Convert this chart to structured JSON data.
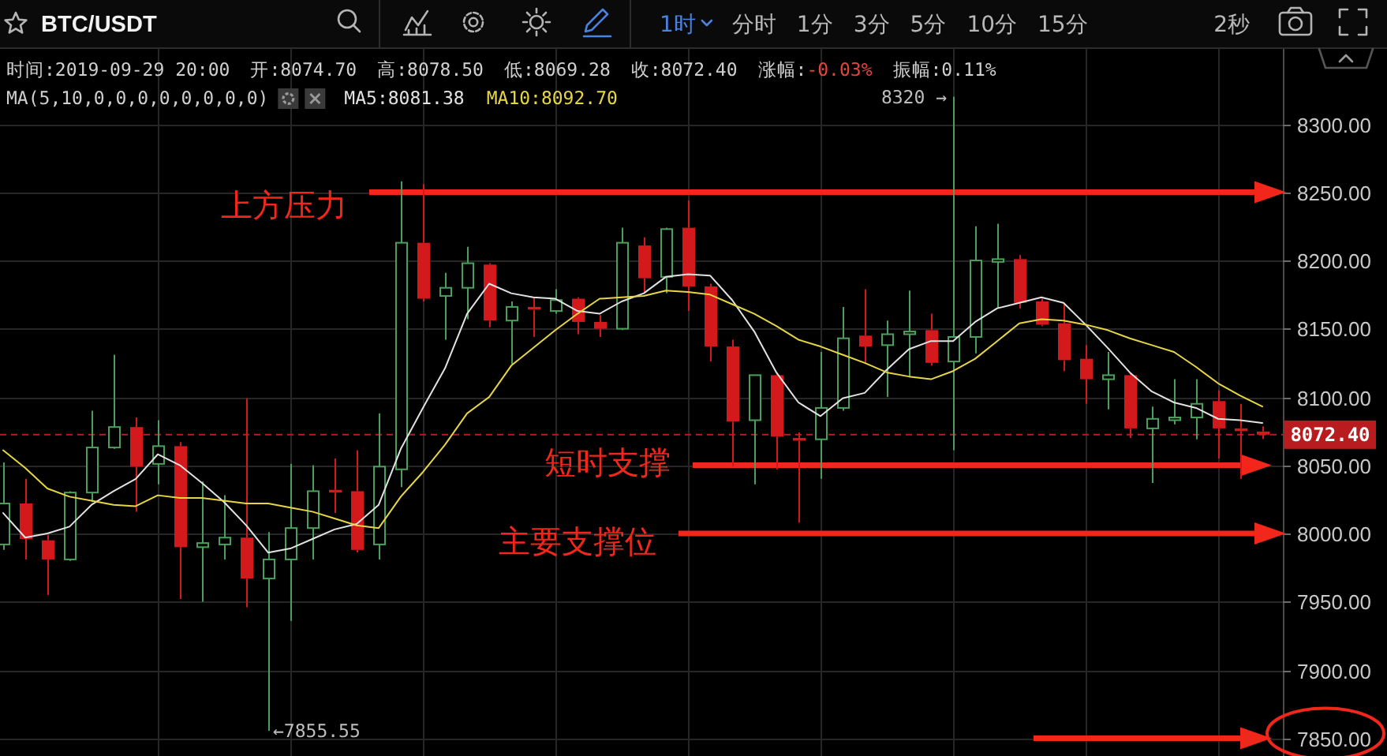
{
  "chart_data": {
    "type": "candlestick",
    "title": "BTC/USDT",
    "categories": [
      null,
      null,
      null,
      null,
      null,
      null,
      null,
      null,
      null,
      null,
      null,
      null,
      null,
      null,
      null,
      null,
      null,
      null,
      null,
      null,
      null,
      null,
      null,
      null,
      null,
      null,
      null,
      null,
      null,
      null,
      null,
      null,
      null,
      null,
      null,
      null,
      null,
      null,
      null,
      null,
      null,
      null,
      null,
      null,
      null,
      null,
      null,
      null,
      null,
      null,
      null,
      null,
      null,
      null,
      null,
      null,
      null,
      null
    ],
    "ohlc": [
      [
        7992,
        8052,
        7988,
        8022
      ],
      [
        8022,
        8040,
        7981,
        7996
      ],
      [
        7995,
        7999,
        7955,
        7981
      ],
      [
        7981,
        8031,
        7980,
        8030
      ],
      [
        8030,
        8090,
        8023,
        8063
      ],
      [
        8063,
        8131,
        8062,
        8078
      ],
      [
        8078,
        8085,
        8016,
        8049
      ],
      [
        8051,
        8083,
        8036,
        8064
      ],
      [
        8064,
        8067,
        7952,
        7990
      ],
      [
        7990,
        8038,
        7950,
        7993
      ],
      [
        7992,
        8028,
        7981,
        7997
      ],
      [
        7997,
        8099,
        7946,
        7967
      ],
      [
        7967,
        8001,
        7855.55,
        7981
      ],
      [
        7981,
        8051,
        7936,
        8004
      ],
      [
        8004,
        8050,
        7981,
        8031
      ],
      [
        8032,
        8055,
        8015,
        8030
      ],
      [
        8031,
        8061,
        7986,
        7988
      ],
      [
        7992,
        8088,
        7981,
        8049
      ],
      [
        8047,
        8258,
        8034,
        8213
      ],
      [
        8213,
        8256,
        8170,
        8172
      ],
      [
        8174,
        8191,
        8142,
        8180
      ],
      [
        8180,
        8210,
        8157,
        8198
      ],
      [
        8197,
        8198,
        8151,
        8156
      ],
      [
        8156,
        8170,
        8124,
        8166
      ],
      [
        8166,
        8173,
        8144,
        8164
      ],
      [
        8163,
        8179,
        8161,
        8171
      ],
      [
        8172,
        8173,
        8146,
        8155
      ],
      [
        8155,
        8160,
        8144,
        8150
      ],
      [
        8150,
        8224,
        8149,
        8213
      ],
      [
        8211,
        8217,
        8176,
        8187
      ],
      [
        8188,
        8224,
        8176,
        8223
      ],
      [
        8224,
        8244,
        8163,
        8181
      ],
      [
        8181,
        8183,
        8126,
        8137
      ],
      [
        8137,
        8142,
        8049,
        8082
      ],
      [
        8083,
        8116,
        8036,
        8116
      ],
      [
        8116,
        8117,
        8047,
        8071
      ],
      [
        8070,
        8074,
        8008,
        8068
      ],
      [
        8069,
        8133,
        8040,
        8092
      ],
      [
        8092,
        8166,
        8090,
        8143
      ],
      [
        8145,
        8179,
        8125,
        8137
      ],
      [
        8138,
        8156,
        8100,
        8146
      ],
      [
        8146,
        8178,
        8115,
        8148
      ],
      [
        8149,
        8161,
        8123,
        8125
      ],
      [
        8126,
        8320,
        8061,
        8144
      ],
      [
        8144,
        8225,
        8132,
        8200
      ],
      [
        8199,
        8227,
        8165,
        8201
      ],
      [
        8201,
        8204,
        8165,
        8169
      ],
      [
        8170,
        8172,
        8152,
        8153
      ],
      [
        8154,
        8168,
        8119,
        8127
      ],
      [
        8128,
        8138,
        8095,
        8113
      ],
      [
        8113,
        8133,
        8091,
        8116
      ],
      [
        8116,
        8118,
        8070,
        8077
      ],
      [
        8077,
        8093,
        8037,
        8084
      ],
      [
        8083,
        8113,
        8080,
        8085
      ],
      [
        8085,
        8113,
        8069,
        8095
      ],
      [
        8097,
        8105,
        8055,
        8077
      ],
      [
        8077,
        8095,
        8040,
        8075
      ],
      [
        8074.7,
        8078.5,
        8069.28,
        8072.4
      ]
    ],
    "colors": [
      "#4aa05a",
      "#d3191c",
      "#d3191c",
      "#4aa05a",
      "#4aa05a",
      "#4aa05a",
      "#d3191c",
      "#4aa05a",
      "#d3191c",
      "#4aa05a",
      "#4aa05a",
      "#d3191c",
      "#4aa05a",
      "#4aa05a",
      "#4aa05a",
      "#d3191c",
      "#d3191c",
      "#4aa05a",
      "#4aa05a",
      "#d3191c",
      "#4aa05a",
      "#4aa05a",
      "#d3191c",
      "#4aa05a",
      "#d3191c",
      "#4aa05a",
      "#d3191c",
      "#d3191c",
      "#4aa05a",
      "#d3191c",
      "#4aa05a",
      "#d3191c",
      "#d3191c",
      "#d3191c",
      "#4aa05a",
      "#d3191c",
      "#d3191c",
      "#4aa05a",
      "#4aa05a",
      "#d3191c",
      "#4aa05a",
      "#4aa05a",
      "#d3191c",
      "#4aa05a",
      "#4aa05a",
      "#4aa05a",
      "#d3191c",
      "#d3191c",
      "#d3191c",
      "#d3191c",
      "#4aa05a",
      "#d3191c",
      "#4aa05a",
      "#4aa05a",
      "#4aa05a",
      "#d3191c",
      "#d3191c",
      "#d3191c"
    ],
    "series": [
      {
        "name": "MA5:8081.38",
        "type": "line",
        "color": "#e2e2e2",
        "values": [
          8015,
          7997,
          8000,
          8005,
          8021,
          8031,
          8040,
          8058,
          8050,
          8037,
          8023,
          8006,
          7986,
          7989,
          7996,
          8003,
          8007,
          8021,
          8062,
          8092,
          8121,
          8161,
          8183,
          8176,
          8173,
          8172,
          8163,
          8161,
          8170,
          8176,
          8188,
          8190,
          8189,
          8171,
          8148,
          8118,
          8096,
          8086,
          8099,
          8103,
          8120,
          8135,
          8141,
          8141,
          8155,
          8165,
          8169,
          8173,
          8169,
          8153,
          8136,
          8118,
          8104,
          8096,
          8092,
          8084,
          8083,
          8081
        ]
      },
      {
        "name": "MA10:8092.70",
        "type": "line",
        "color": "#e6d544",
        "values": [
          8061,
          8048,
          8033,
          8027,
          8024,
          8021,
          8020,
          8028,
          8026,
          8026,
          8024,
          8022,
          8022,
          8019,
          8016,
          8011,
          8006,
          8004,
          8027,
          8045,
          8065,
          8088,
          8100,
          8123,
          8136,
          8149,
          8161,
          8172,
          8173,
          8174,
          8178,
          8177,
          8175,
          8168,
          8161,
          8152,
          8142,
          8137,
          8131,
          8125,
          8118,
          8115,
          8113,
          8119,
          8128,
          8141,
          8154,
          8157,
          8156,
          8153,
          8149,
          8143,
          8138,
          8133,
          8122,
          8110,
          8101,
          8093
        ]
      }
    ],
    "ylim": [
      7837,
      8355
    ],
    "yticks": [
      {
        "value": 7850,
        "label": "7850.00"
      },
      {
        "value": 7900,
        "label": "7900.00"
      },
      {
        "value": 7950,
        "label": "7950.00"
      },
      {
        "value": 8000,
        "label": "8000.00"
      },
      {
        "value": 8050,
        "label": "8050.00"
      },
      {
        "value": 8100,
        "label": "8100.00"
      },
      {
        "value": 8150,
        "label": "8150.00"
      },
      {
        "value": 8200,
        "label": "8200.00"
      },
      {
        "value": 8250,
        "label": "8250.00"
      },
      {
        "value": 8300,
        "label": "8300.00"
      }
    ],
    "tick_labels": "y",
    "grid": true,
    "ref_lines": [
      {
        "axis": "y",
        "value": 8250,
        "label": "上方压力",
        "color": "#f2261b"
      },
      {
        "axis": "y",
        "value": 8072.4,
        "label": "8072.40",
        "color": "#b81c1e",
        "line_style": "dashed"
      },
      {
        "axis": "y",
        "value": 8050,
        "label": "短时支撑",
        "color": "#f2261b"
      },
      {
        "axis": "y",
        "value": 8000,
        "label": "主要支撑位",
        "color": "#f2261b"
      },
      {
        "axis": "y",
        "value": 7850,
        "color": "#f2261b"
      }
    ],
    "annotations": [
      "时间:2019-09-29 20:00",
      "开:8074.70",
      "高:8078.50",
      "低:8069.28",
      "收:8072.40",
      "涨幅:-0.03%",
      "振幅:0.11%",
      "MA(5,10,0,0,0,0,0,0,0,0)",
      "8320 →",
      "←7855.55",
      "1时",
      "分时",
      "1分",
      "3分",
      "5分",
      "10分",
      "15分",
      "2秒"
    ]
  }
}
